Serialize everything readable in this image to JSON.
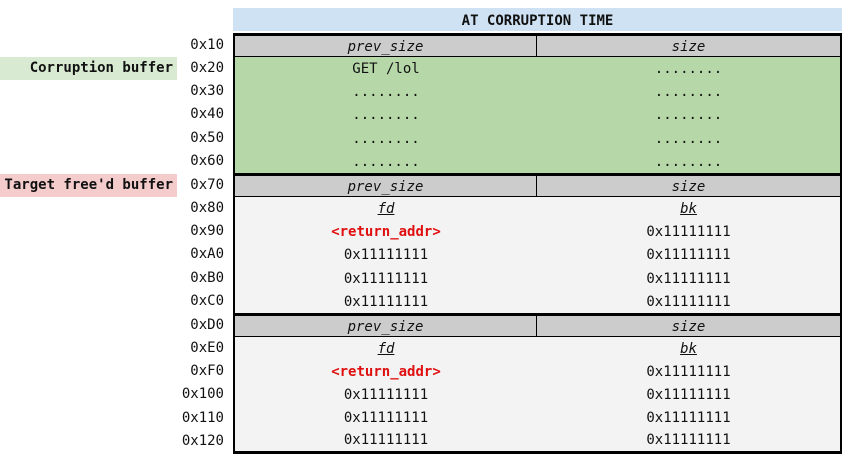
{
  "title": "AT CORRUPTION TIME",
  "side_labels": {
    "corruption": "Corruption buffer",
    "target": "Target free'd buffer"
  },
  "addresses": [
    "0x10",
    "0x20",
    "0x30",
    "0x40",
    "0x50",
    "0x60",
    "0x70",
    "0x80",
    "0x90",
    "0xA0",
    "0xB0",
    "0xC0",
    "0xD0",
    "0xE0",
    "0xF0",
    "0x100",
    "0x110",
    "0x120"
  ],
  "chunk1": {
    "header": {
      "left": "prev_size",
      "right": "size"
    },
    "rows": [
      {
        "left": "GET /lol",
        "right": "........"
      },
      {
        "left": "........",
        "right": "........"
      },
      {
        "left": "........",
        "right": "........"
      },
      {
        "left": "........",
        "right": "........"
      },
      {
        "left": "........",
        "right": "........"
      }
    ]
  },
  "chunk2": {
    "header": {
      "left": "prev_size",
      "right": "size"
    },
    "rows": [
      {
        "left": "fd",
        "right": "bk"
      },
      {
        "left": "<return_addr>",
        "right": "0x11111111"
      },
      {
        "left": "0x11111111",
        "right": "0x11111111"
      },
      {
        "left": "0x11111111",
        "right": "0x11111111"
      },
      {
        "left": "0x11111111",
        "right": "0x11111111"
      }
    ]
  },
  "chunk3": {
    "header": {
      "left": "prev_size",
      "right": "size"
    },
    "rows": [
      {
        "left": "fd",
        "right": "bk"
      },
      {
        "left": "<return_addr>",
        "right": "0x11111111"
      },
      {
        "left": "0x11111111",
        "right": "0x11111111"
      },
      {
        "left": "0x11111111",
        "right": "0x11111111"
      },
      {
        "left": "0x11111111",
        "right": "0x11111111"
      }
    ]
  },
  "colors": {
    "title_bg": "#cfe2f3",
    "corruption_bg": "#b6d7a8",
    "corruption_label_bg": "#d9ead3",
    "target_label_bg": "#f4cccc",
    "header_bg": "#cccccc",
    "free_bg": "#f3f3f3",
    "return_addr": "#e01010"
  }
}
